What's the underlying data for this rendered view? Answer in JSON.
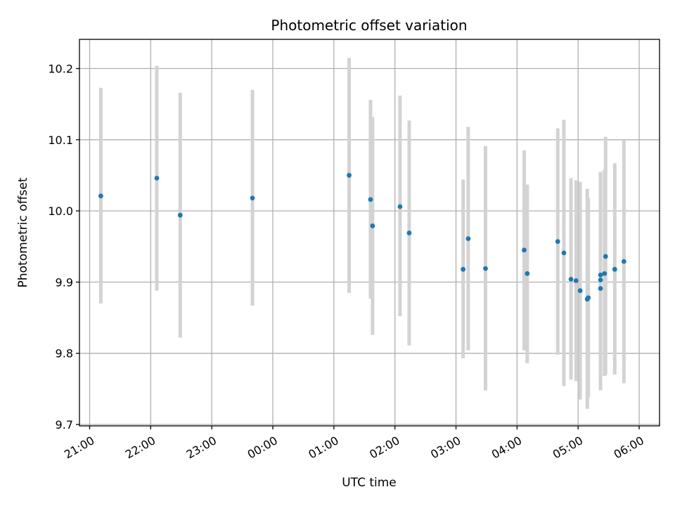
{
  "chart_data": {
    "type": "scatter",
    "title": "Photometric offset variation",
    "xlabel": "UTC time",
    "ylabel": "Photometric offset",
    "x_axis_kind": "time",
    "x_axis_start_date": "",
    "xlim": [
      "20:50",
      "06:20"
    ],
    "ylim": [
      9.698,
      10.241
    ],
    "grid": true,
    "x_ticks": [
      "21:00",
      "22:00",
      "23:00",
      "00:00",
      "01:00",
      "02:00",
      "03:00",
      "04:00",
      "05:00",
      "06:00"
    ],
    "y_ticks": [
      9.7,
      9.8,
      9.9,
      10.0,
      10.1,
      10.2
    ],
    "y_tick_labels": [
      "9.7",
      "9.8",
      "9.9",
      "10.0",
      "10.1",
      "10.2"
    ],
    "colors": {
      "points": "#1f77b4",
      "errorbars": "#d3d3d3",
      "grid": "#b0b0b0"
    },
    "series": [
      {
        "points": [
          {
            "x": "21:11",
            "y": 10.021,
            "ylow": 9.87,
            "yhigh": 10.173
          },
          {
            "x": "22:06",
            "y": 10.046,
            "ylow": 9.888,
            "yhigh": 10.204
          },
          {
            "x": "22:29",
            "y": 9.994,
            "ylow": 9.822,
            "yhigh": 10.166
          },
          {
            "x": "23:40",
            "y": 10.018,
            "ylow": 9.867,
            "yhigh": 10.17
          },
          {
            "x": "01:15",
            "y": 10.05,
            "ylow": 9.885,
            "yhigh": 10.215
          },
          {
            "x": "01:36",
            "y": 10.016,
            "ylow": 9.877,
            "yhigh": 10.156
          },
          {
            "x": "01:38",
            "y": 9.979,
            "ylow": 9.826,
            "yhigh": 10.132
          },
          {
            "x": "02:05",
            "y": 10.006,
            "ylow": 9.852,
            "yhigh": 10.162
          },
          {
            "x": "02:14",
            "y": 9.969,
            "ylow": 9.811,
            "yhigh": 10.127
          },
          {
            "x": "03:07",
            "y": 9.918,
            "ylow": 9.793,
            "yhigh": 10.044
          },
          {
            "x": "03:12",
            "y": 9.961,
            "ylow": 9.804,
            "yhigh": 10.118
          },
          {
            "x": "03:29",
            "y": 9.919,
            "ylow": 9.748,
            "yhigh": 10.091
          },
          {
            "x": "04:07",
            "y": 9.945,
            "ylow": 9.804,
            "yhigh": 10.085
          },
          {
            "x": "04:10",
            "y": 9.912,
            "ylow": 9.786,
            "yhigh": 10.037
          },
          {
            "x": "04:40",
            "y": 9.957,
            "ylow": 9.798,
            "yhigh": 10.116
          },
          {
            "x": "04:46",
            "y": 9.941,
            "ylow": 9.754,
            "yhigh": 10.128
          },
          {
            "x": "04:53",
            "y": 9.904,
            "ylow": 9.763,
            "yhigh": 10.046
          },
          {
            "x": "04:58",
            "y": 9.902,
            "ylow": 9.761,
            "yhigh": 10.043
          },
          {
            "x": "05:02",
            "y": 9.888,
            "ylow": 9.735,
            "yhigh": 10.041
          },
          {
            "x": "05:09",
            "y": 9.876,
            "ylow": 9.722,
            "yhigh": 10.031
          },
          {
            "x": "05:10",
            "y": 9.878,
            "ylow": 9.738,
            "yhigh": 10.018
          },
          {
            "x": "05:22",
            "y": 9.891,
            "ylow": 9.748,
            "yhigh": 10.055
          },
          {
            "x": "05:22",
            "y": 9.903,
            "ylow": 9.77,
            "yhigh": 10.038
          },
          {
            "x": "05:22",
            "y": 9.91,
            "ylow": 9.775,
            "yhigh": 10.052
          },
          {
            "x": "05:26",
            "y": 9.912,
            "ylow": 9.768,
            "yhigh": 10.058
          },
          {
            "x": "05:27",
            "y": 9.936,
            "ylow": 9.77,
            "yhigh": 10.104
          },
          {
            "x": "05:36",
            "y": 9.918,
            "ylow": 9.77,
            "yhigh": 10.067
          },
          {
            "x": "05:45",
            "y": 9.929,
            "ylow": 9.758,
            "yhigh": 10.1
          }
        ]
      }
    ]
  }
}
